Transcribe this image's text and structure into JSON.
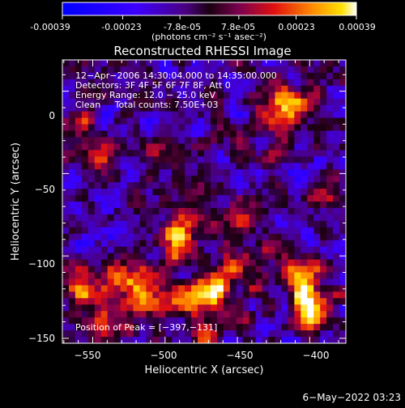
{
  "colorbar": {
    "tick_labels": [
      "-0.00039",
      "-0.00023",
      "-7.8e-05",
      "7.8e-05",
      "0.00023",
      "0.00039"
    ],
    "unit_label": "(photons cm⁻² s⁻¹ asec⁻²)",
    "range": [
      -0.00039,
      0.00039
    ]
  },
  "chart_data": {
    "type": "heatmap",
    "title": "Reconstructed RHESSI Image",
    "xlabel": "Heliocentric X (arcsec)",
    "ylabel": "Heliocentric Y (arcsec)",
    "xlim": [
      -571,
      -375
    ],
    "ylim": [
      -153,
      19
    ],
    "x_ticks": [
      -550,
      -500,
      -450,
      -400
    ],
    "y_ticks": [
      0,
      -50,
      -100,
      -150
    ],
    "x_tick_labels": [
      "−550",
      "−500",
      "−450",
      "−400"
    ],
    "y_tick_labels": [
      "0",
      "−50",
      "−100",
      "−150"
    ],
    "info_lines": [
      "12−Apr−2006 14:30:04.000 to 14:35:00.000",
      "Detectors: 3F 4F 5F 6F 7F 8F, Att 0",
      "Energy Range: 12.0 − 25.0 keV",
      "Clean     Total counts: 7.50E+03"
    ],
    "peak_label": "Position of Peak = [−397,−131]",
    "peak_position": [
      -397,
      -131
    ],
    "hotspots": [
      {
        "x": -397,
        "y": -131,
        "amp": 1.0
      },
      {
        "x": -408,
        "y": -115,
        "amp": 0.85
      },
      {
        "x": -490,
        "y": -88,
        "amp": 0.9
      },
      {
        "x": -465,
        "y": -120,
        "amp": 0.85
      },
      {
        "x": -485,
        "y": -122,
        "amp": 0.75
      },
      {
        "x": -557,
        "y": -120,
        "amp": 0.8
      },
      {
        "x": -515,
        "y": -125,
        "amp": 0.85
      },
      {
        "x": -530,
        "y": -112,
        "amp": 0.6
      },
      {
        "x": -545,
        "y": -140,
        "amp": 0.55
      },
      {
        "x": -445,
        "y": -75,
        "amp": 0.55
      },
      {
        "x": -424,
        "y": -15,
        "amp": 0.55
      },
      {
        "x": -412,
        "y": -8,
        "amp": 0.6
      },
      {
        "x": -540,
        "y": -40,
        "amp": 0.45
      },
      {
        "x": -560,
        "y": -20,
        "amp": 0.45
      },
      {
        "x": -465,
        "y": -140,
        "amp": 0.5
      },
      {
        "x": -450,
        "y": -105,
        "amp": 0.4
      },
      {
        "x": -500,
        "y": -40,
        "amp": 0.35
      },
      {
        "x": -390,
        "y": -60,
        "amp": 0.35
      }
    ]
  },
  "timestamp": "6−May−2022 03:23"
}
